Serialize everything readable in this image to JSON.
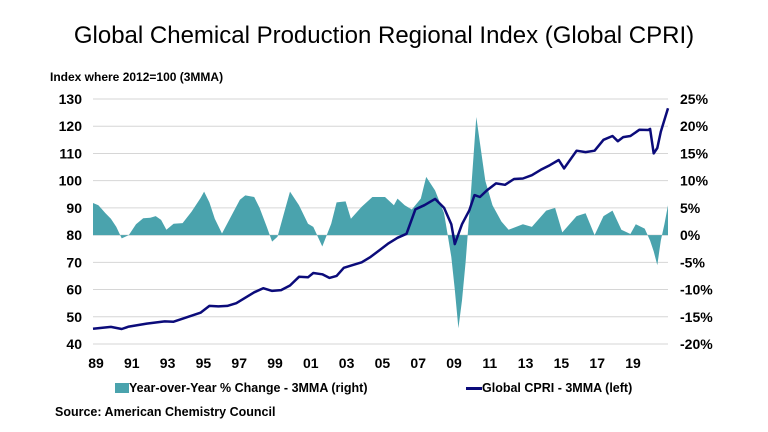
{
  "chart_data": {
    "type": "line+area",
    "title": "Global Chemical Production Regional Index (Global CPRI)",
    "left_axis_label": "Index where 2012=100  (3MMA)",
    "left_ylim": [
      40,
      130
    ],
    "left_ticks": [
      "130",
      "120",
      "110",
      "100",
      "90",
      "80",
      "70",
      "60",
      "50",
      "40"
    ],
    "right_ylim": [
      -20,
      25
    ],
    "right_ticks": [
      "25%",
      "20%",
      "15%",
      "10%",
      "5%",
      "0%",
      "-5%",
      "-10%",
      "-15%",
      "-20%"
    ],
    "x_ticks": [
      "89",
      "91",
      "93",
      "95",
      "97",
      "99",
      "01",
      "03",
      "05",
      "07",
      "09",
      "11",
      "13",
      "15",
      "17",
      "19"
    ],
    "x_range": [
      1989,
      2021.1
    ],
    "grid": true,
    "legend_placement": "bottom",
    "series": [
      {
        "name": "Year-over-Year % Change - 3MMA (right)",
        "axis": "right",
        "kind": "area",
        "color": "#4aa3ad",
        "x": [
          1989,
          1989.3,
          1989.7,
          1990.0,
          1990.3,
          1990.6,
          1991.0,
          1991.4,
          1991.8,
          1992.2,
          1992.5,
          1992.8,
          1993.1,
          1993.5,
          1994.0,
          1994.5,
          1995.0,
          1995.2,
          1995.5,
          1995.8,
          1996.2,
          1996.8,
          1997.2,
          1997.5,
          1998.0,
          1998.3,
          1998.7,
          1999.0,
          1999.3,
          1999.7,
          2000.0,
          2000.5,
          2001.0,
          2001.3,
          2001.8,
          2002.3,
          2002.6,
          2003.1,
          2003.4,
          2004.0,
          2004.6,
          2005.3,
          2005.8,
          2006.0,
          2006.4,
          2006.8,
          2007.3,
          2007.6,
          2008.1,
          2008.6,
          2009.0,
          2009.2,
          2009.4,
          2009.6,
          2009.8,
          2010.1,
          2010.4,
          2010.6,
          2010.9,
          2011.3,
          2011.8,
          2012.2,
          2013.0,
          2013.5,
          2014.3,
          2014.8,
          2015.2,
          2016.0,
          2016.5,
          2017.0,
          2017.5,
          2018.0,
          2018.5,
          2019.0,
          2019.3,
          2019.8,
          2020.1,
          2020.3,
          2020.5,
          2020.7,
          2020.9,
          2021.1
        ],
        "values": [
          5.9,
          5.5,
          4.0,
          3.0,
          1.5,
          -0.6,
          0.0,
          2.0,
          3.1,
          3.2,
          3.5,
          2.8,
          1.0,
          2.1,
          2.2,
          4.3,
          6.8,
          8.0,
          6.0,
          3.0,
          0.3,
          4.0,
          6.5,
          7.3,
          7.0,
          5.0,
          1.5,
          -1.2,
          -0.3,
          4.5,
          8.0,
          5.5,
          2.1,
          1.5,
          -2.1,
          2.1,
          6.0,
          6.2,
          3.0,
          5.2,
          7.0,
          7.0,
          5.5,
          6.7,
          5.5,
          4.7,
          6.7,
          10.7,
          8.2,
          4.0,
          -4.0,
          -10.0,
          -17.1,
          -12.0,
          -5.0,
          8.0,
          21.7,
          17.0,
          10.0,
          5.5,
          2.5,
          1.0,
          2.0,
          1.5,
          4.5,
          5.0,
          0.5,
          3.5,
          4.0,
          0.0,
          3.5,
          4.5,
          1.0,
          0.2,
          2.0,
          1.2,
          -1.0,
          -3.0,
          -5.5,
          -1.0,
          2.0,
          5.5
        ]
      },
      {
        "name": "Global CPRI - 3MMA (left)",
        "axis": "left",
        "kind": "line",
        "color": "#0b0b7a",
        "x": [
          1989,
          1990.0,
          1990.6,
          1991.0,
          1992.0,
          1993.0,
          1993.5,
          1994.0,
          1995.0,
          1995.5,
          1996.0,
          1996.5,
          1997.0,
          1998.0,
          1998.5,
          1999.0,
          1999.5,
          2000.0,
          2000.5,
          2001.0,
          2001.3,
          2001.8,
          2002.2,
          2002.6,
          2003.0,
          2003.5,
          2004.0,
          2004.5,
          2005.0,
          2005.5,
          2006.0,
          2006.5,
          2007.0,
          2007.5,
          2008.1,
          2008.6,
          2009.0,
          2009.2,
          2009.6,
          2010.0,
          2010.3,
          2010.6,
          2011.0,
          2011.5,
          2012.0,
          2012.5,
          2013.0,
          2013.5,
          2014.0,
          2014.5,
          2015.0,
          2015.3,
          2016.0,
          2016.5,
          2017.0,
          2017.5,
          2018.0,
          2018.3,
          2018.6,
          2019.0,
          2019.5,
          2020.0,
          2020.1,
          2020.3,
          2020.5,
          2020.7,
          2021.1
        ],
        "values": [
          45.6,
          46.3,
          45.5,
          46.4,
          47.5,
          48.3,
          48.2,
          49.3,
          51.5,
          54.0,
          53.8,
          54.0,
          55.0,
          59.0,
          60.5,
          59.5,
          59.8,
          61.5,
          64.7,
          64.5,
          66.1,
          65.6,
          64.3,
          65.0,
          68.0,
          69.0,
          70.0,
          72.0,
          74.5,
          77.0,
          79.0,
          80.5,
          89.5,
          91.0,
          93.3,
          90.0,
          84.0,
          76.7,
          84.0,
          89.0,
          94.7,
          94.0,
          96.5,
          99.0,
          98.5,
          100.6,
          100.8,
          102.0,
          104.0,
          105.7,
          107.6,
          104.5,
          111.0,
          110.5,
          111.0,
          115.0,
          116.4,
          114.5,
          116.0,
          116.4,
          118.7,
          118.6,
          119.0,
          110.0,
          112.0,
          118.0,
          126.6
        ]
      }
    ]
  },
  "source": "Source: American Chemistry Council"
}
